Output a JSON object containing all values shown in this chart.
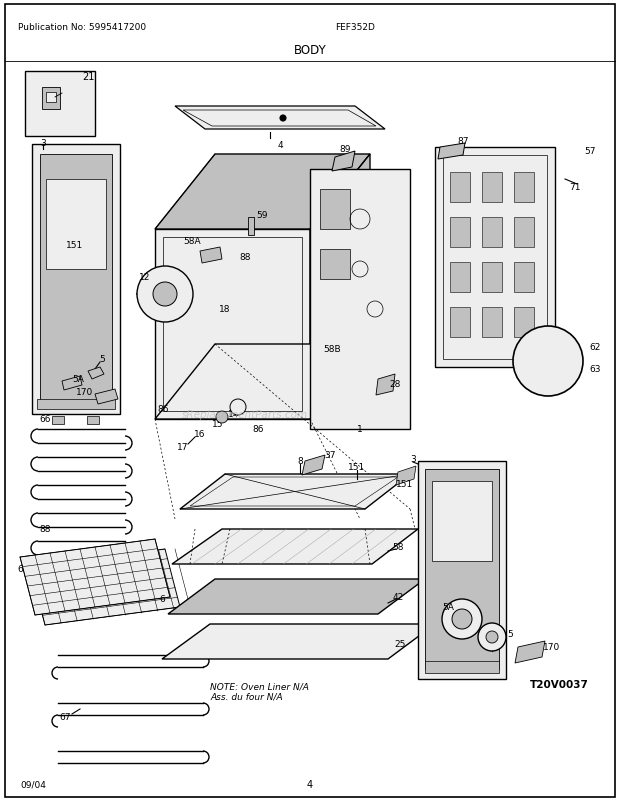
{
  "title": "BODY",
  "pub_no": "Publication No: 5995417200",
  "model": "FEF352D",
  "date": "09/04",
  "page": "4",
  "diagram_id": "T20V0037",
  "note_line1": "NOTE: Oven Liner N/A",
  "note_line2": "Ass. du four N/A",
  "bg_color": "#ffffff",
  "fig_width": 6.2,
  "fig_height": 8.03,
  "dpi": 100,
  "lw": 0.8,
  "gray_fill": "#d8d8d8",
  "light_gray": "#eeeeee",
  "mid_gray": "#c0c0c0",
  "dark_gray": "#888888"
}
